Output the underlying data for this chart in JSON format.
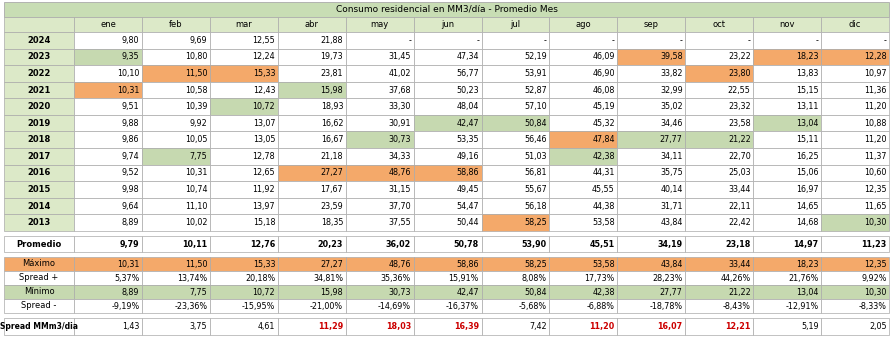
{
  "title": "Consumo residencial en MM3/día - Promedio Mes",
  "col_headers": [
    "ene",
    "feb",
    "mar",
    "abr",
    "may",
    "jun",
    "jul",
    "ago",
    "sep",
    "oct",
    "nov",
    "dic"
  ],
  "rows": [
    {
      "label": "2024",
      "values": [
        "9,80",
        "9,69",
        "12,55",
        "21,88",
        "-",
        "-",
        "-",
        "-",
        "-",
        "-",
        "-",
        "-"
      ],
      "cell_bg": [
        null,
        null,
        null,
        null,
        null,
        null,
        null,
        null,
        null,
        null,
        null,
        null
      ]
    },
    {
      "label": "2023",
      "values": [
        "9,35",
        "10,80",
        "12,24",
        "19,73",
        "31,45",
        "47,34",
        "52,19",
        "46,09",
        "39,58",
        "23,22",
        "18,23",
        "12,28"
      ],
      "cell_bg": [
        "#c6d9b0",
        null,
        null,
        null,
        null,
        null,
        null,
        null,
        "#f4a96a",
        null,
        "#f4a96a",
        "#f4a96a"
      ]
    },
    {
      "label": "2022",
      "values": [
        "10,10",
        "11,50",
        "15,33",
        "23,81",
        "41,02",
        "56,77",
        "53,91",
        "46,90",
        "33,82",
        "23,80",
        "13,83",
        "10,97"
      ],
      "cell_bg": [
        null,
        "#f4a96a",
        "#f4a96a",
        null,
        null,
        null,
        null,
        null,
        null,
        "#f4a96a",
        null,
        null
      ]
    },
    {
      "label": "2021",
      "values": [
        "10,31",
        "10,58",
        "12,43",
        "15,98",
        "37,68",
        "50,23",
        "52,87",
        "46,08",
        "32,99",
        "22,55",
        "15,15",
        "11,36"
      ],
      "cell_bg": [
        "#f4a96a",
        null,
        null,
        "#c6d9b0",
        null,
        null,
        null,
        null,
        null,
        null,
        null,
        null
      ]
    },
    {
      "label": "2020",
      "values": [
        "9,51",
        "10,39",
        "10,72",
        "18,93",
        "33,30",
        "48,04",
        "57,10",
        "45,19",
        "35,02",
        "23,32",
        "13,11",
        "11,20"
      ],
      "cell_bg": [
        null,
        null,
        "#c6d9b0",
        null,
        null,
        null,
        null,
        null,
        null,
        null,
        null,
        null
      ]
    },
    {
      "label": "2019",
      "values": [
        "9,88",
        "9,92",
        "13,07",
        "16,62",
        "30,91",
        "42,47",
        "50,84",
        "45,32",
        "34,46",
        "23,58",
        "13,04",
        "10,88"
      ],
      "cell_bg": [
        null,
        null,
        null,
        null,
        null,
        "#c6d9b0",
        "#c6d9b0",
        null,
        null,
        null,
        "#c6d9b0",
        null
      ]
    },
    {
      "label": "2018",
      "values": [
        "9,86",
        "10,05",
        "13,05",
        "16,67",
        "30,73",
        "53,35",
        "56,46",
        "47,84",
        "27,77",
        "21,22",
        "15,11",
        "11,20"
      ],
      "cell_bg": [
        null,
        null,
        null,
        null,
        "#c6d9b0",
        null,
        null,
        "#f4a96a",
        "#c6d9b0",
        "#c6d9b0",
        null,
        null
      ]
    },
    {
      "label": "2017",
      "values": [
        "9,74",
        "7,75",
        "12,78",
        "21,18",
        "34,33",
        "49,16",
        "51,03",
        "42,38",
        "34,11",
        "22,70",
        "16,25",
        "11,37"
      ],
      "cell_bg": [
        null,
        "#c6d9b0",
        null,
        null,
        null,
        null,
        null,
        "#c6d9b0",
        null,
        null,
        null,
        null
      ]
    },
    {
      "label": "2016",
      "values": [
        "9,52",
        "10,31",
        "12,65",
        "27,27",
        "48,76",
        "58,86",
        "56,81",
        "44,31",
        "35,75",
        "25,03",
        "15,06",
        "10,60"
      ],
      "cell_bg": [
        null,
        null,
        null,
        "#f4a96a",
        "#f4a96a",
        "#f4a96a",
        null,
        null,
        null,
        null,
        null,
        null
      ]
    },
    {
      "label": "2015",
      "values": [
        "9,98",
        "10,74",
        "11,92",
        "17,67",
        "31,15",
        "49,45",
        "55,67",
        "45,55",
        "40,14",
        "33,44",
        "16,97",
        "12,35"
      ],
      "cell_bg": [
        null,
        null,
        null,
        null,
        null,
        null,
        null,
        null,
        null,
        null,
        null,
        null
      ]
    },
    {
      "label": "2014",
      "values": [
        "9,64",
        "11,10",
        "13,97",
        "23,59",
        "37,70",
        "54,47",
        "56,18",
        "44,38",
        "31,71",
        "22,11",
        "14,65",
        "11,65"
      ],
      "cell_bg": [
        null,
        null,
        null,
        null,
        null,
        null,
        null,
        null,
        null,
        null,
        null,
        null
      ]
    },
    {
      "label": "2013",
      "values": [
        "8,89",
        "10,02",
        "15,18",
        "18,35",
        "37,55",
        "50,44",
        "58,25",
        "53,58",
        "43,84",
        "22,42",
        "14,68",
        "10,30"
      ],
      "cell_bg": [
        null,
        null,
        null,
        null,
        null,
        null,
        "#f4a96a",
        null,
        null,
        null,
        null,
        "#c6d9b0"
      ]
    }
  ],
  "promedio_row": {
    "label": "Promedio",
    "values": [
      "9,79",
      "10,11",
      "12,76",
      "20,23",
      "36,02",
      "50,78",
      "53,90",
      "45,51",
      "34,19",
      "23,18",
      "14,97",
      "11,23"
    ]
  },
  "maximo_row": {
    "label": "Máximo",
    "values": [
      "10,31",
      "11,50",
      "15,33",
      "27,27",
      "48,76",
      "58,86",
      "58,25",
      "53,58",
      "43,84",
      "33,44",
      "18,23",
      "12,35"
    ],
    "bg": "#f4a96a"
  },
  "spread_plus_row": {
    "label": "Spread +",
    "values": [
      "5,37%",
      "13,74%",
      "20,18%",
      "34,81%",
      "35,36%",
      "15,91%",
      "8,08%",
      "17,73%",
      "28,23%",
      "44,26%",
      "21,76%",
      "9,92%"
    ]
  },
  "minimo_row": {
    "label": "Mínimo",
    "values": [
      "8,89",
      "7,75",
      "10,72",
      "15,98",
      "30,73",
      "42,47",
      "50,84",
      "42,38",
      "27,77",
      "21,22",
      "13,04",
      "10,30"
    ],
    "bg": "#c6d9b0"
  },
  "spread_minus_row": {
    "label": "Spread -",
    "values": [
      "-9,19%",
      "-23,36%",
      "-15,95%",
      "-21,00%",
      "-14,69%",
      "-16,37%",
      "-5,68%",
      "-6,88%",
      "-18,78%",
      "-8,43%",
      "-12,91%",
      "-8,33%"
    ]
  },
  "spread_mmm_row": {
    "label": "Spread MMm3/dia",
    "values": [
      "1,43",
      "3,75",
      "4,61",
      "11,29",
      "18,03",
      "16,39",
      "7,42",
      "11,20",
      "16,07",
      "12,21",
      "5,19",
      "2,05"
    ],
    "red_cols": [
      3,
      4,
      5,
      7,
      8,
      9
    ]
  },
  "bg_light_green": "#dce9c8",
  "bg_orange": "#f4a96a",
  "bg_medium_green": "#c6d9b0",
  "bg_title_green": "#c8ddb4",
  "border_color": "#aaaaaa",
  "text_color_red": "#cc0000",
  "label_col_bg": "#dce9c8"
}
